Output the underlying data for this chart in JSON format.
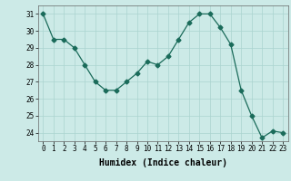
{
  "x": [
    0,
    1,
    2,
    3,
    4,
    5,
    6,
    7,
    8,
    9,
    10,
    11,
    12,
    13,
    14,
    15,
    16,
    17,
    18,
    19,
    20,
    21,
    22,
    23
  ],
  "y": [
    31,
    29.5,
    29.5,
    29,
    28,
    27,
    26.5,
    26.5,
    27,
    27.5,
    28.2,
    28,
    28.5,
    29.5,
    30.5,
    31,
    31,
    30.2,
    29.2,
    26.5,
    25,
    23.7,
    24.1,
    24
  ],
  "line_color": "#1a6b5a",
  "marker": "D",
  "marker_size": 2.5,
  "bg_color": "#cceae7",
  "grid_color": "#aad4cf",
  "xlabel": "Humidex (Indice chaleur)",
  "ylim": [
    23.5,
    31.5
  ],
  "xlim": [
    -0.5,
    23.5
  ],
  "yticks": [
    24,
    25,
    26,
    27,
    28,
    29,
    30,
    31
  ],
  "xticks": [
    0,
    1,
    2,
    3,
    4,
    5,
    6,
    7,
    8,
    9,
    10,
    11,
    12,
    13,
    14,
    15,
    16,
    17,
    18,
    19,
    20,
    21,
    22,
    23
  ],
  "tick_fontsize": 5.5,
  "label_fontsize": 7
}
